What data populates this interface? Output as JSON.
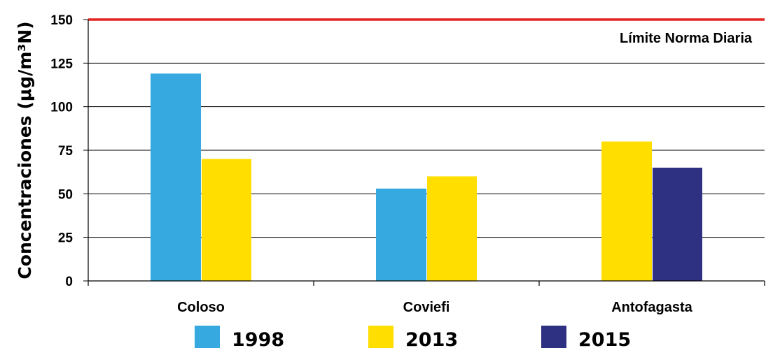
{
  "chart_data": {
    "type": "bar",
    "categories": [
      "Coloso",
      "Coviefi",
      "Antofagasta"
    ],
    "series": [
      {
        "name": "1998",
        "values": [
          119,
          53,
          null
        ],
        "color": "#36a9e1"
      },
      {
        "name": "2013",
        "values": [
          70,
          60,
          80
        ],
        "color": "#ffde00"
      },
      {
        "name": "2015",
        "values": [
          null,
          null,
          65
        ],
        "color": "#2e3082"
      }
    ],
    "ylabel": "Concentraciones (μg/m³N)",
    "xlabel": "",
    "ylim": [
      0,
      150
    ],
    "yticks": [
      0,
      25,
      50,
      75,
      100,
      125,
      150
    ],
    "grid": true,
    "legend": "bottom",
    "reference_line": {
      "value": 150,
      "label": "Límite Norma Diaria",
      "color": "#e52421"
    }
  }
}
